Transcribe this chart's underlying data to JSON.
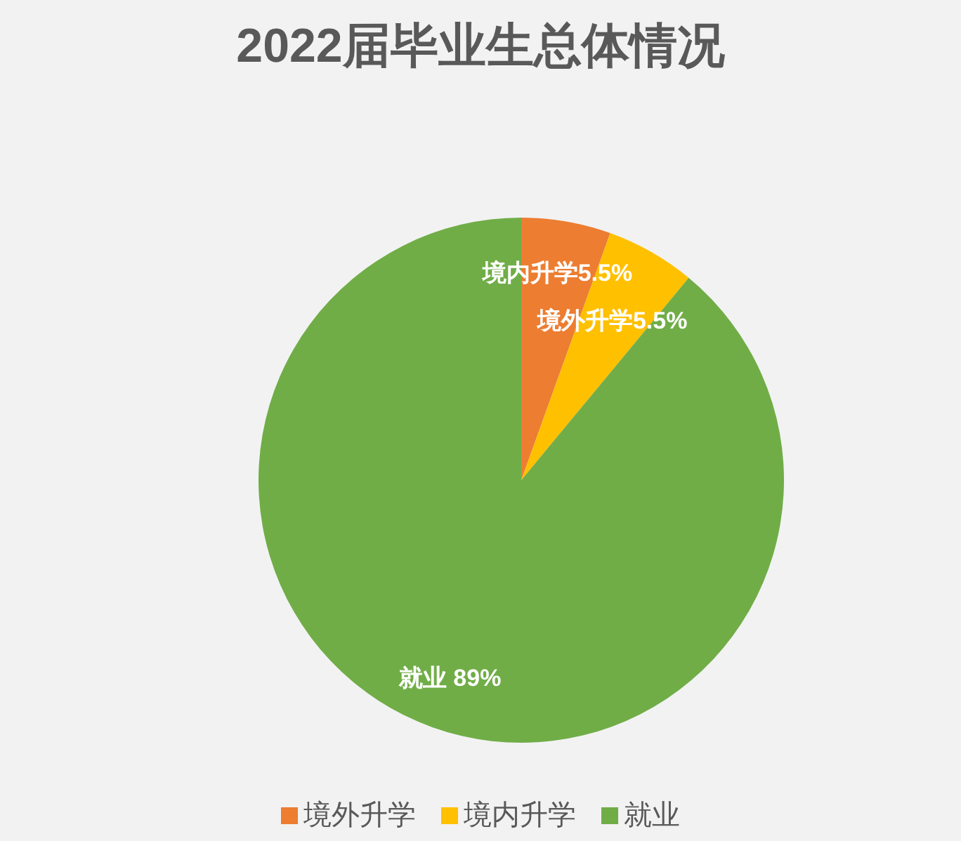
{
  "chart_data": {
    "type": "pie",
    "title": "2022届毕业生总体情况",
    "categories": [
      "境外升学",
      "境内升学",
      "就业"
    ],
    "values": [
      5.5,
      5.5,
      89
    ],
    "colors": [
      "#ed7d31",
      "#ffc000",
      "#70ad47"
    ],
    "value_labels": [
      "境内升学5.5%",
      "境外升学5.5%",
      "就业 89%"
    ],
    "legend": "bottom"
  }
}
